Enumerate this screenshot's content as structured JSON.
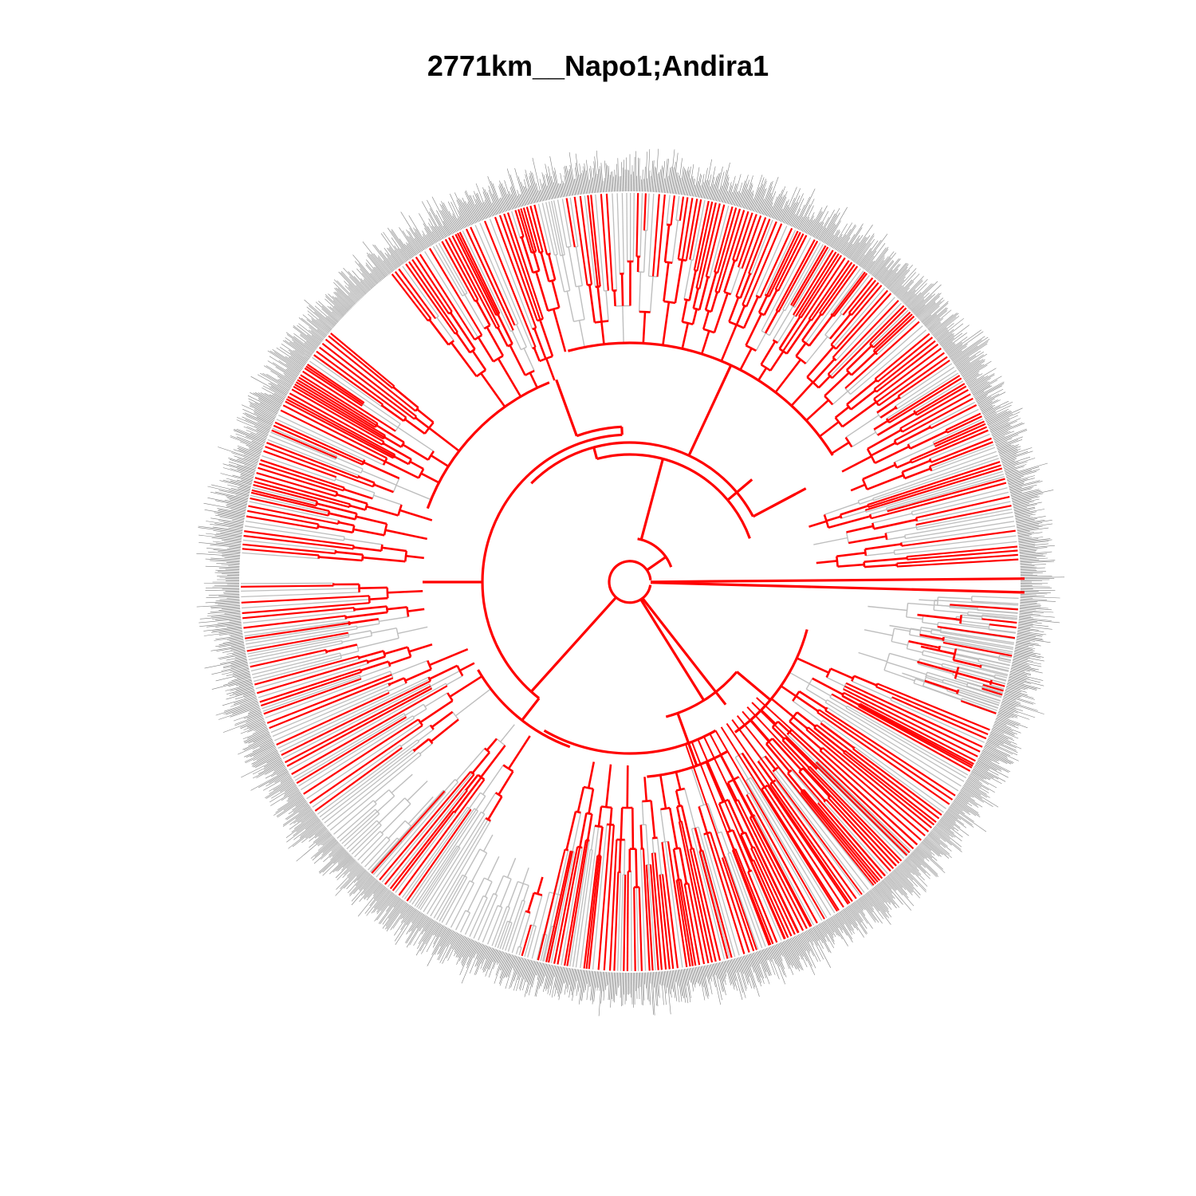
{
  "title": "2771km__Napo1;Andira1",
  "tree": {
    "layout": "circular-fan",
    "colors": {
      "highlighted_branch": "#ff0000",
      "background_branch": "#bebebe",
      "tip_label": "#808080",
      "background": "#ffffff"
    }
  }
}
